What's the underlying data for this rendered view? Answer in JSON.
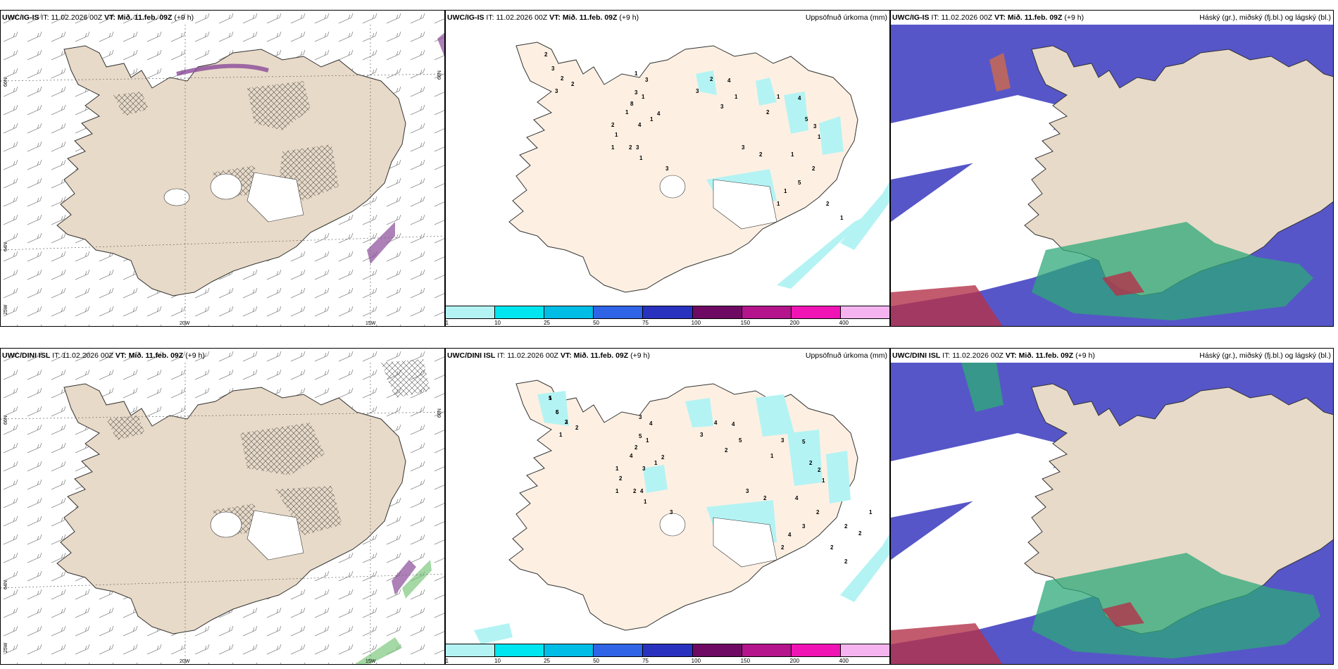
{
  "rows": [
    {
      "model": "UWC/IG-IS",
      "it_label": "IT:",
      "it_value": "11.02.2026 00Z",
      "vt_label": "VT:",
      "vt_value": "Mið. 11.feb. 09Z",
      "lead": "(+9 h)",
      "precip_numbers": [
        "2",
        "3",
        "2",
        "3",
        "2",
        "1",
        "1",
        "3",
        "3",
        "3",
        "1",
        "2",
        "1",
        "2",
        "1",
        "1",
        "1",
        "4",
        "8",
        "4",
        "3",
        "3",
        "2",
        "4",
        "1",
        "3",
        "2",
        "3",
        "2",
        "1",
        "4",
        "5",
        "3",
        "1",
        "1",
        "1",
        "1",
        "5",
        "2",
        "2",
        "1"
      ],
      "coords": {
        "lat_top": "66N",
        "lat_bottom": "64N",
        "lon_left": "25W",
        "lon_a": "20W",
        "lon_b": "15W",
        "lat_right": "66N"
      }
    },
    {
      "model": "UWC/DINI ISL",
      "it_label": "IT:",
      "it_value": "11.02.2026 00Z",
      "vt_label": "VT:",
      "vt_value": "Mið. 11.feb. 09Z",
      "lead": "(+9 h)",
      "precip_numbers": [
        "1",
        "6",
        "3",
        "1",
        "2",
        "3",
        "1",
        "4",
        "4",
        "5",
        "4",
        "1",
        "2",
        "2",
        "1",
        "1",
        "1",
        "2",
        "2",
        "3",
        "3",
        "3",
        "4",
        "4",
        "5",
        "2",
        "2",
        "3",
        "1",
        "3",
        "5",
        "2",
        "2",
        "1",
        "4",
        "4",
        "2",
        "3",
        "2",
        "2",
        "2",
        "2",
        "1",
        "2",
        "5",
        "5",
        "2"
      ],
      "coords": {
        "lat_top": "66N",
        "lat_bottom": "64N",
        "lon_left": "25W",
        "lon_a": "20W",
        "lon_b": "15W",
        "lat_right": "66N"
      }
    }
  ],
  "precip_title": "Uppsöfnuð úrkoma (mm)",
  "cloud_title": "Háský (gr.), miðský (fj.bl.) og lágský (bl.)",
  "colorbar": {
    "labels": [
      "1",
      "10",
      "25",
      "50",
      "75",
      "100",
      "150",
      "200",
      "400"
    ],
    "colors": [
      "#b4f3f3",
      "#00e6f0",
      "#00bde6",
      "#2f64e6",
      "#2832be",
      "#6e0a64",
      "#b4148c",
      "#f014b4",
      "#f5b4f0"
    ]
  },
  "colors": {
    "land": "#e8dac8",
    "land_precip": "#fdf0e3",
    "precip_light": "#b4f3f3",
    "cloud_high": "#5656c8",
    "cloud_low": "#2ea87a",
    "mixed_red": "#b4324a"
  }
}
